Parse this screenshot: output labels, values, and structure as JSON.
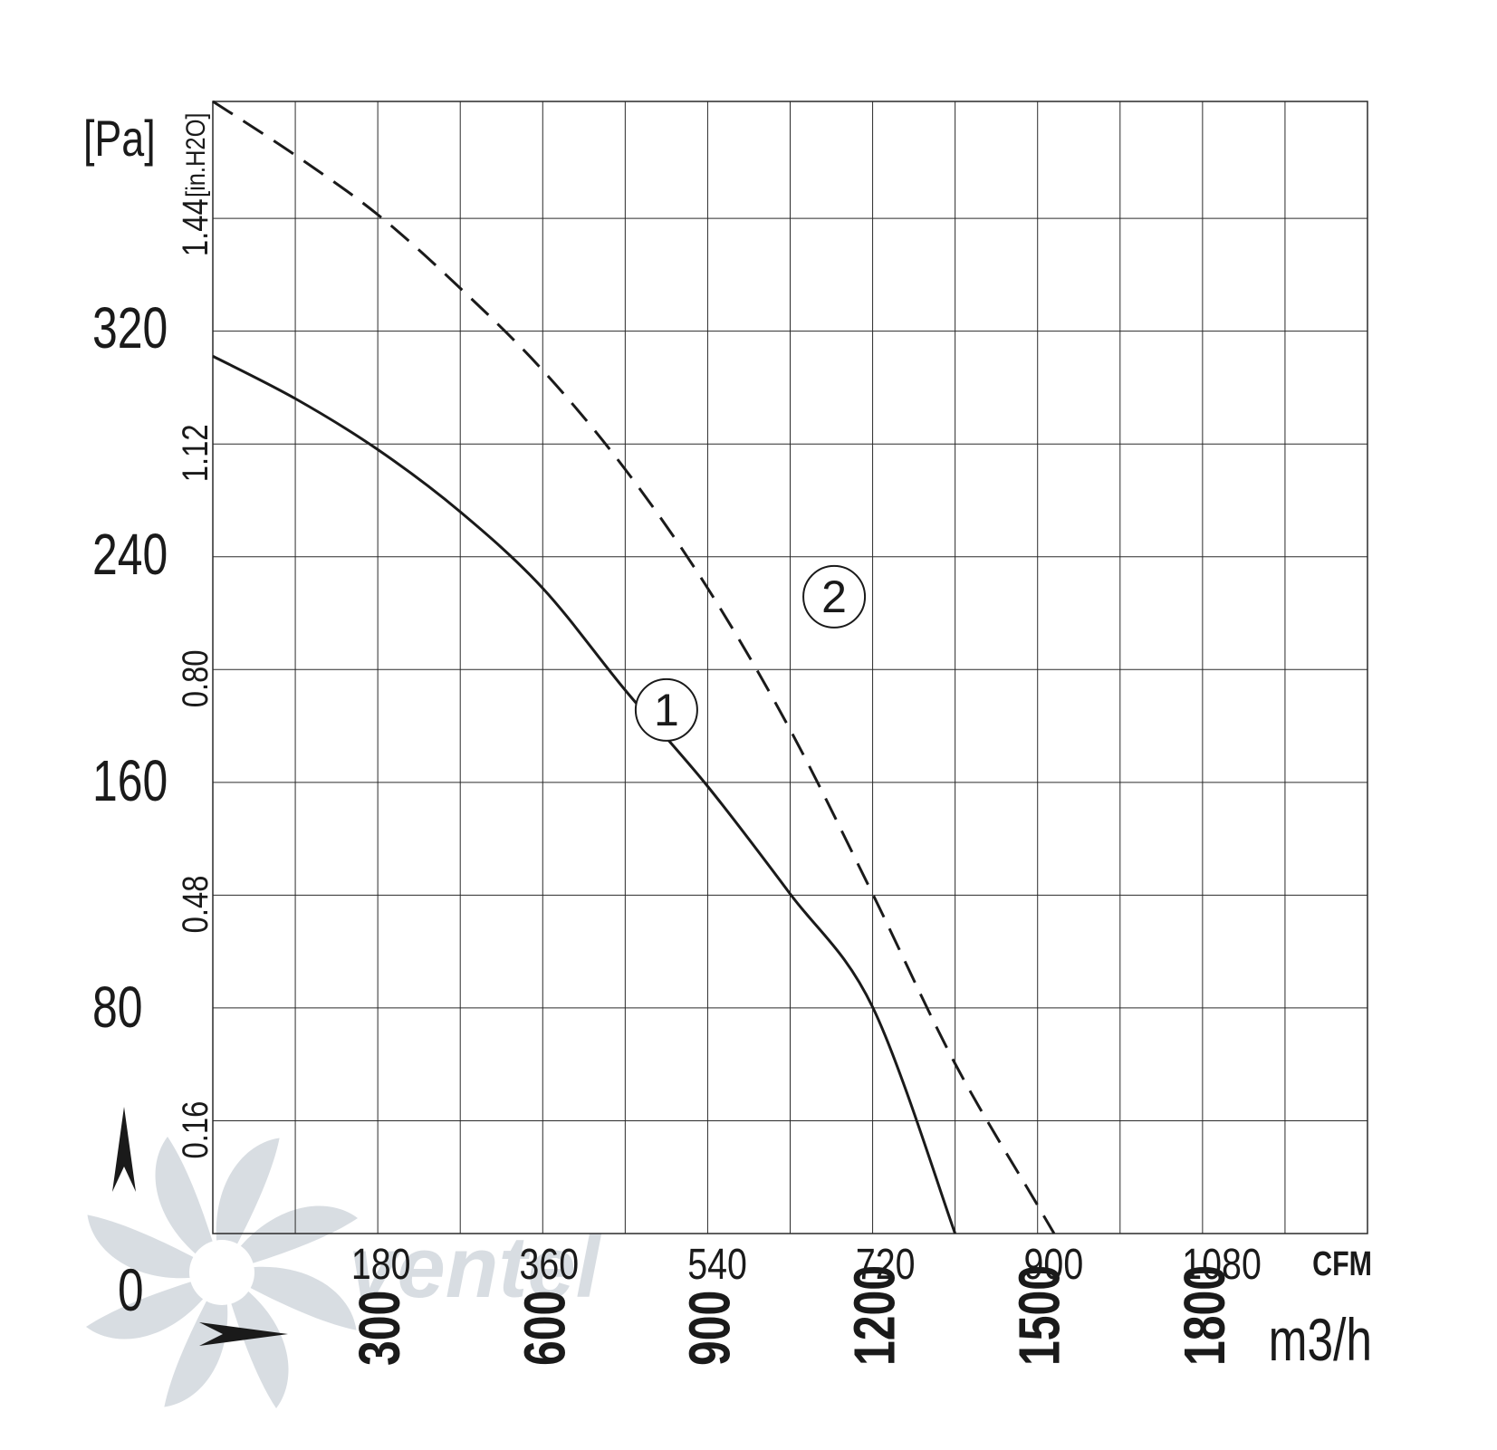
{
  "chart_data": {
    "type": "line",
    "y_unit_left": "[Pa]",
    "y_unit_right": "[in.H2O]",
    "x_unit_top": "CFM",
    "x_unit_bottom": "m3/h",
    "origin_label": "0",
    "grid": true,
    "xlim_m3h": [
      0,
      2100
    ],
    "ylim_pa": [
      0,
      400
    ],
    "pa_ticks": [
      "80",
      "160",
      "240",
      "320"
    ],
    "pa_tick_values": [
      80,
      160,
      240,
      320
    ],
    "inh2o_ticks": [
      "0.16",
      "0.48",
      "0.80",
      "1.12",
      "1.44"
    ],
    "inh2o_tick_values": [
      0.16,
      0.48,
      0.8,
      1.12,
      1.44
    ],
    "cfm_ticks": [
      "180",
      "360",
      "540",
      "720",
      "900",
      "1080"
    ],
    "cfm_tick_values": [
      180,
      360,
      540,
      720,
      900,
      1080
    ],
    "m3h_ticks": [
      "300",
      "600",
      "900",
      "1200",
      "1500",
      "1800"
    ],
    "m3h_tick_values": [
      300,
      600,
      900,
      1200,
      1500,
      1800
    ],
    "series": [
      {
        "label": "1",
        "style": "solid",
        "x_m3h": [
          0,
          150,
          300,
          450,
          600,
          750,
          900,
          1050,
          1200,
          1350
        ],
        "y_pa": [
          310,
          295,
          277,
          255,
          228,
          192,
          158,
          120,
          80,
          0
        ],
        "label_at": [
          825,
          185
        ]
      },
      {
        "label": "2",
        "style": "dashed",
        "x_m3h": [
          0,
          150,
          300,
          450,
          600,
          750,
          900,
          1050,
          1200,
          1350,
          1500,
          1530
        ],
        "y_pa": [
          400,
          381,
          360,
          334,
          305,
          270,
          228,
          178,
          120,
          60,
          10,
          0
        ],
        "label_at": [
          1130,
          225
        ]
      }
    ],
    "colors": {
      "line": "#1a1a1a",
      "grid": "#2a2a2a",
      "watermark": "#d8dde2",
      "watermark_accent": "#cfe6f4"
    },
    "watermark_icon": "ventel-fan-logo-icon",
    "watermark_text": "ventel"
  }
}
